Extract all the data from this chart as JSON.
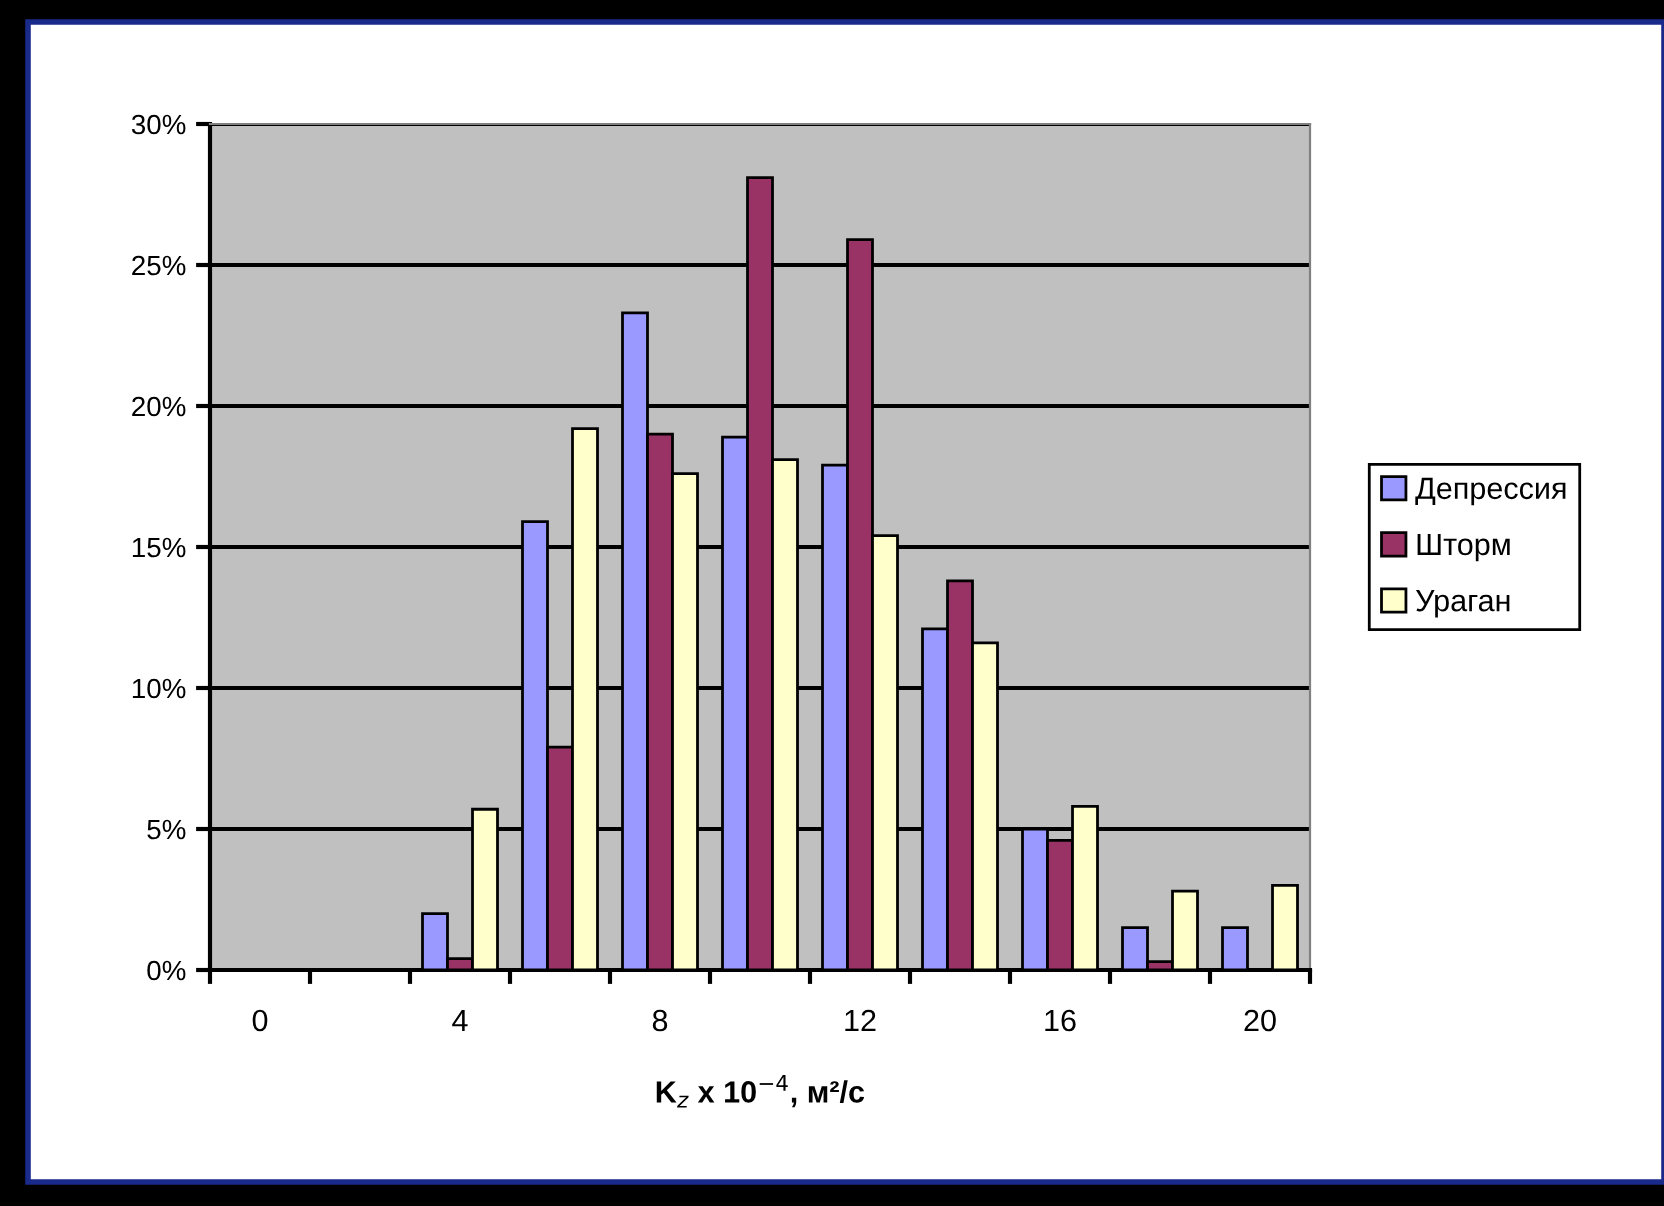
{
  "chart_data": {
    "type": "bar",
    "xlabel": "K$_{z}$ x 10$^{−4}$, м²/с",
    "categories": [
      "0",
      null,
      "4",
      null,
      "8",
      null,
      "12",
      null,
      "16",
      null,
      "20"
    ],
    "series": [
      {
        "name": "Депрессия",
        "color": "#9999ff",
        "values": [
          null,
          null,
          2.0,
          15.9,
          23.3,
          18.9,
          17.9,
          12.1,
          5.0,
          1.5,
          1.5
        ]
      },
      {
        "name": "Шторм",
        "color": "#993366",
        "values": [
          null,
          null,
          0.4,
          7.9,
          19.0,
          28.1,
          25.9,
          13.8,
          4.6,
          0.3,
          null
        ]
      },
      {
        "name": "Ураган",
        "color": "#ffffcc",
        "values": [
          null,
          null,
          5.7,
          19.2,
          17.6,
          18.1,
          15.4,
          11.6,
          5.8,
          2.8,
          3.0
        ]
      }
    ],
    "ylim": [
      0,
      30
    ],
    "yticks": [
      {
        "value": 0,
        "label": "0%"
      },
      {
        "value": 5,
        "label": "5%"
      },
      {
        "value": 10,
        "label": "10%"
      },
      {
        "value": 15,
        "label": "15%"
      },
      {
        "value": 20,
        "label": "20%"
      },
      {
        "value": 25,
        "label": "25%"
      },
      {
        "value": 30,
        "label": "30%"
      }
    ],
    "grid": "y",
    "legend": "right"
  }
}
